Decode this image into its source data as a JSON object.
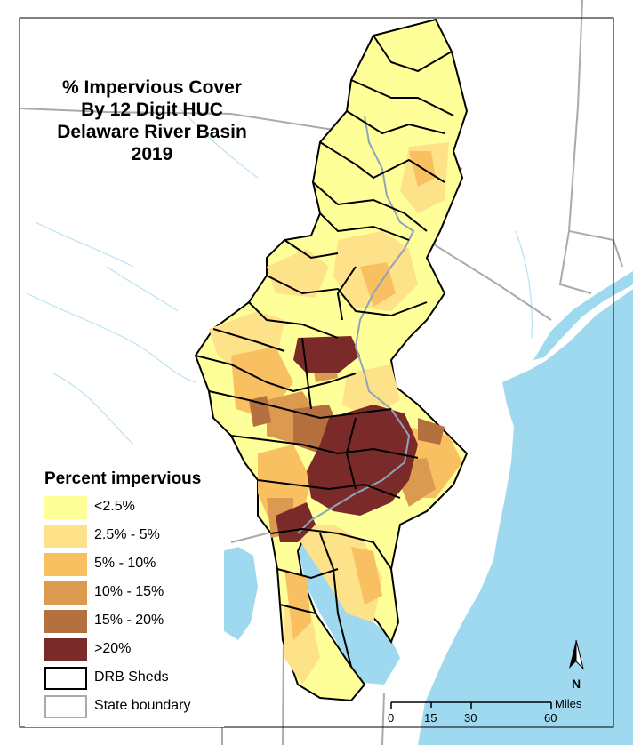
{
  "title": {
    "line1": "% Impervious Cover",
    "line2": "By 12 Digit HUC",
    "line3": "Delaware River Basin",
    "line4": "2019"
  },
  "legend": {
    "title": "Percent impervious",
    "items": [
      {
        "label": "<2.5%",
        "color": "#ffff99"
      },
      {
        "label": "2.5% - 5%",
        "color": "#fde28a"
      },
      {
        "label": "5% - 10%",
        "color": "#f8c060"
      },
      {
        "label": "10% - 15%",
        "color": "#dc9a50"
      },
      {
        "label": "15% - 20%",
        "color": "#b57040"
      },
      {
        "label": ">20%",
        "color": "#7b2a2a"
      },
      {
        "label": "DRB Sheds",
        "color": "#000000"
      },
      {
        "label": "State boundary",
        "color": "#aaaaaa"
      }
    ]
  },
  "scale_bar": {
    "ticks": [
      "0",
      "15",
      "30",
      "60"
    ],
    "unit": "Miles"
  },
  "north_arrow": {
    "label": "N",
    "icon": "north-arrow-icon"
  },
  "colors": {
    "water": "#9fd9f0",
    "land": "#ffffff",
    "state_boundary": "#aaaaaa",
    "shed_outline": "#000000",
    "river": "#8fa4b8"
  }
}
